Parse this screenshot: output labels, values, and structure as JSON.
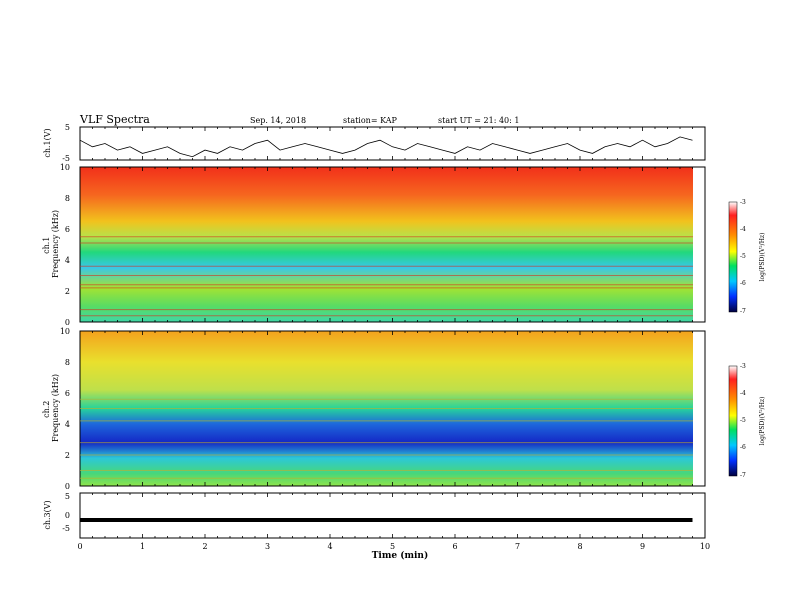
{
  "header": {
    "title": "VLF Spectra",
    "date": "Sep. 14, 2018",
    "station": "station= KAP",
    "start": "start UT = 21: 40: 1"
  },
  "chart_data": [
    {
      "type": "line",
      "name": "ch1-voltage",
      "ylabel": "ch.1(V)",
      "ylim": [
        -5,
        5
      ],
      "yticks": [
        "5",
        "-5"
      ],
      "x": [
        0.0,
        0.2,
        0.4,
        0.6,
        0.8,
        1.0,
        1.2,
        1.4,
        1.6,
        1.8,
        2.0,
        2.2,
        2.4,
        2.6,
        2.8,
        3.0,
        3.2,
        3.4,
        3.6,
        3.8,
        4.0,
        4.2,
        4.4,
        4.6,
        4.8,
        5.0,
        5.2,
        5.4,
        5.6,
        5.8,
        6.0,
        6.2,
        6.4,
        6.6,
        6.8,
        7.0,
        7.2,
        7.4,
        7.6,
        7.8,
        8.0,
        8.2,
        8.4,
        8.6,
        8.8,
        9.0,
        9.2,
        9.4,
        9.6,
        9.8
      ],
      "values": [
        1,
        -1,
        0,
        -2,
        -1,
        -3,
        -2,
        -1,
        -3,
        -4,
        -2,
        -3,
        -1,
        -2,
        0,
        1,
        -2,
        -1,
        0,
        -1,
        -2,
        -3,
        -2,
        0,
        1,
        -1,
        -2,
        0,
        -1,
        -2,
        -3,
        -1,
        -2,
        0,
        -1,
        -2,
        -3,
        -2,
        -1,
        0,
        -2,
        -3,
        -1,
        0,
        -1,
        1,
        -1,
        0,
        2,
        1
      ]
    },
    {
      "type": "heatmap",
      "name": "ch1-spectrogram",
      "ylabel": "ch.1\nFrequency (kHz)",
      "ylim": [
        0,
        10
      ],
      "yticks": [
        "0",
        "2",
        "4",
        "6",
        "8",
        "10"
      ],
      "colorbar": {
        "label": "log(PSD)(V²/Hz)",
        "range": [
          -7,
          -3
        ],
        "ticks": [
          "-3",
          "-4",
          "-5",
          "-6",
          "-7"
        ]
      }
    },
    {
      "type": "heatmap",
      "name": "ch2-spectrogram",
      "ylabel": "ch.2\nFrequency (kHz)",
      "ylim": [
        0,
        10
      ],
      "yticks": [
        "0",
        "2",
        "4",
        "6",
        "8",
        "10"
      ],
      "colorbar": {
        "label": "log(PSD)(V²/Hz)",
        "range": [
          -7,
          -3
        ],
        "ticks": [
          "-3",
          "-4",
          "-5",
          "-6",
          "-7"
        ]
      }
    },
    {
      "type": "line",
      "name": "ch3-voltage",
      "ylabel": "ch.3(V)",
      "ylim": [
        -5,
        5
      ],
      "yticks": [
        "5",
        "0",
        "-5"
      ],
      "x": [
        0,
        9.8
      ],
      "values": [
        -1,
        -1
      ]
    }
  ],
  "xaxis": {
    "label": "Time (min)",
    "xlim": [
      0,
      10
    ],
    "ticks": [
      "0",
      "1",
      "2",
      "3",
      "4",
      "5",
      "6",
      "7",
      "8",
      "9",
      "10"
    ]
  }
}
